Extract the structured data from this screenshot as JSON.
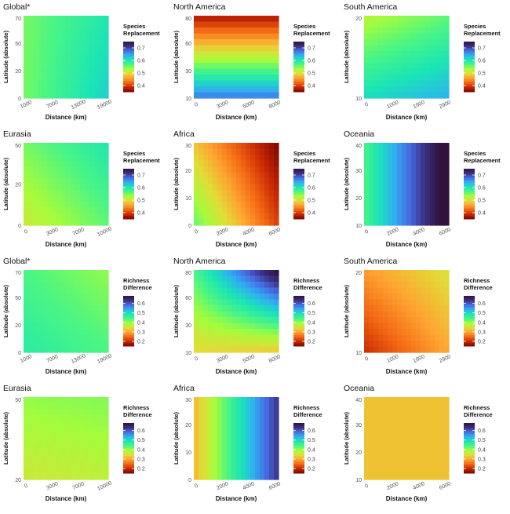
{
  "colors": {
    "stops": [
      "#7a0403",
      "#c82803",
      "#f26713",
      "#fea331",
      "#e1dd37",
      "#a4fc3c",
      "#4af584",
      "#1ae4b6",
      "#30b0f0",
      "#466be3",
      "#3b2f80",
      "#30123b"
    ]
  },
  "chart_data": [
    {
      "type": "heatmap",
      "title": "Global*",
      "xlabel": "Distance (km)",
      "ylabel": "Latitude (absolute)",
      "xticks": [
        "1000",
        "7000",
        "13000",
        "19000"
      ],
      "yticks": [
        "0",
        "20",
        "50",
        "70"
      ],
      "legend_title": [
        "Species",
        "Replacement"
      ],
      "legend_ticks": [
        "0.7",
        "0.6",
        "0.5",
        "0.4"
      ],
      "color_range": [
        0.35,
        0.75
      ],
      "corners": {
        "top_left": 0.55,
        "top_right": 0.6,
        "bottom_left": 0.55,
        "bottom_right": 0.62
      }
    },
    {
      "type": "heatmap",
      "title": "North America",
      "xlabel": "Distance (km)",
      "ylabel": "Latitude (absolute)",
      "xticks": [
        "0",
        "3000",
        "5000",
        "8000"
      ],
      "yticks": [
        "10",
        "30",
        "60",
        "80"
      ],
      "legend_title": [
        "Species",
        "Replacement"
      ],
      "legend_ticks": [
        "0.7",
        "0.6",
        "0.5",
        "0.4"
      ],
      "color_range": [
        0.35,
        0.75
      ],
      "corners": {
        "top_left": 0.37,
        "top_right": 0.37,
        "bottom_left": 0.67,
        "bottom_right": 0.67
      }
    },
    {
      "type": "heatmap",
      "title": "South America",
      "xlabel": "Distance (km)",
      "ylabel": "Latitude (absolute)",
      "xticks": [
        "0",
        "1000",
        "1900",
        "2900"
      ],
      "yticks": [
        "10",
        "20"
      ],
      "legend_title": [
        "Species",
        "Replacement"
      ],
      "legend_ticks": [
        "0.7",
        "0.6",
        "0.5",
        "0.4"
      ],
      "color_range": [
        0.35,
        0.75
      ],
      "corners": {
        "top_left": 0.52,
        "top_right": 0.56,
        "bottom_left": 0.61,
        "bottom_right": 0.64
      }
    },
    {
      "type": "heatmap",
      "title": "Eurasia",
      "xlabel": "Distance (km)",
      "ylabel": "Latitude (absolute)",
      "xticks": [
        "0",
        "3000",
        "7000",
        "10000"
      ],
      "yticks": [
        "0",
        "20",
        "50"
      ],
      "legend_title": [
        "Species",
        "Replacement"
      ],
      "legend_ticks": [
        "0.7",
        "0.6",
        "0.5",
        "0.4"
      ],
      "color_range": [
        0.35,
        0.75
      ],
      "corners": {
        "top_left": 0.55,
        "top_right": 0.6,
        "bottom_left": 0.51,
        "bottom_right": 0.56
      }
    },
    {
      "type": "heatmap",
      "title": "Africa",
      "xlabel": "Distance (km)",
      "ylabel": "Latitude (absolute)",
      "xticks": [
        "0",
        "2000",
        "4000",
        "6000"
      ],
      "yticks": [
        "0",
        "10",
        "20",
        "30"
      ],
      "legend_title": [
        "Species",
        "Replacement"
      ],
      "legend_ticks": [
        "0.7",
        "0.6",
        "0.5",
        "0.4"
      ],
      "color_range": [
        0.35,
        0.75
      ],
      "corners": {
        "top_left": 0.48,
        "top_right": 0.35,
        "bottom_left": 0.56,
        "bottom_right": 0.4
      }
    },
    {
      "type": "heatmap",
      "title": "Oceania",
      "xlabel": "Distance (km)",
      "ylabel": "Latitude (absolute)",
      "xticks": [
        "0",
        "2000",
        "4000",
        "6000"
      ],
      "yticks": [
        "10",
        "20",
        "30",
        "40"
      ],
      "legend_title": [
        "Species",
        "Replacement"
      ],
      "legend_ticks": [
        "0.7",
        "0.6",
        "0.5",
        "0.4"
      ],
      "color_range": [
        0.35,
        0.75
      ],
      "corners": {
        "top_left": 0.57,
        "top_right": 0.77,
        "bottom_left": 0.57,
        "bottom_right": 0.77
      }
    },
    {
      "type": "heatmap",
      "title": "Global*",
      "xlabel": "Distance (km)",
      "ylabel": "Latitude (absolute)",
      "xticks": [
        "1000",
        "7000",
        "13000",
        "19000"
      ],
      "yticks": [
        "0",
        "20",
        "50",
        "70"
      ],
      "legend_title": [
        "Richness",
        "Difference"
      ],
      "legend_ticks": [
        "0.6",
        "0.5",
        "0.4",
        "0.3",
        "0.2"
      ],
      "color_range": [
        0.15,
        0.68
      ],
      "corners": {
        "top_left": 0.44,
        "top_right": 0.4,
        "bottom_left": 0.47,
        "bottom_right": 0.44
      }
    },
    {
      "type": "heatmap",
      "title": "North America",
      "xlabel": "Distance (km)",
      "ylabel": "Latitude (absolute)",
      "xticks": [
        "0",
        "3000",
        "5000",
        "8000"
      ],
      "yticks": [
        "10",
        "30",
        "60",
        "80"
      ],
      "legend_title": [
        "Richness",
        "Difference"
      ],
      "legend_ticks": [
        "0.6",
        "0.5",
        "0.4",
        "0.3",
        "0.2"
      ],
      "color_range": [
        0.15,
        0.68
      ],
      "corners": {
        "top_left": 0.44,
        "top_right": 0.69,
        "bottom_left": 0.34,
        "bottom_right": 0.32
      }
    },
    {
      "type": "heatmap",
      "title": "South America",
      "xlabel": "Distance (km)",
      "ylabel": "Latitude (absolute)",
      "xticks": [
        "0",
        "1000",
        "1900",
        "2900"
      ],
      "yticks": [
        "10",
        "20"
      ],
      "legend_title": [
        "Richness",
        "Difference"
      ],
      "legend_ticks": [
        "0.6",
        "0.5",
        "0.4",
        "0.3",
        "0.2"
      ],
      "color_range": [
        0.15,
        0.68
      ],
      "corners": {
        "top_left": 0.29,
        "top_right": 0.35,
        "bottom_left": 0.2,
        "bottom_right": 0.3
      }
    },
    {
      "type": "heatmap",
      "title": "Eurasia",
      "xlabel": "Distance (km)",
      "ylabel": "Latitude (absolute)",
      "xticks": [
        "0",
        "3000",
        "7000",
        "10000"
      ],
      "yticks": [
        "20",
        "50"
      ],
      "legend_title": [
        "Richness",
        "Difference"
      ],
      "legend_ticks": [
        "0.6",
        "0.5",
        "0.4",
        "0.3",
        "0.2"
      ],
      "color_range": [
        0.15,
        0.68
      ],
      "corners": {
        "top_left": 0.4,
        "top_right": 0.41,
        "bottom_left": 0.36,
        "bottom_right": 0.37
      }
    },
    {
      "type": "heatmap",
      "title": "Africa",
      "xlabel": "Distance (km)",
      "ylabel": "Latitude (absolute)",
      "xticks": [
        "0",
        "2000",
        "4000",
        "6000"
      ],
      "yticks": [
        "0",
        "10",
        "20",
        "30"
      ],
      "legend_title": [
        "Richness",
        "Difference"
      ],
      "legend_ticks": [
        "0.6",
        "0.5",
        "0.4",
        "0.3",
        "0.2"
      ],
      "color_range": [
        0.15,
        0.68
      ],
      "corners": {
        "top_left": 0.31,
        "top_right": 0.63,
        "bottom_left": 0.31,
        "bottom_right": 0.63
      }
    },
    {
      "type": "heatmap",
      "title": "Oceania",
      "xlabel": "Distance (km)",
      "ylabel": "Latitude (absolute)",
      "xticks": [
        "0",
        "2000",
        "4000",
        "6000"
      ],
      "yticks": [
        "10",
        "20",
        "30",
        "40"
      ],
      "legend_title": [
        "Richness",
        "Difference"
      ],
      "legend_ticks": [
        "0.6",
        "0.5",
        "0.4",
        "0.3",
        "0.2"
      ],
      "color_range": [
        0.15,
        0.68
      ],
      "corners": {
        "top_left": 0.32,
        "top_right": 0.32,
        "bottom_left": 0.32,
        "bottom_right": 0.32
      }
    }
  ]
}
